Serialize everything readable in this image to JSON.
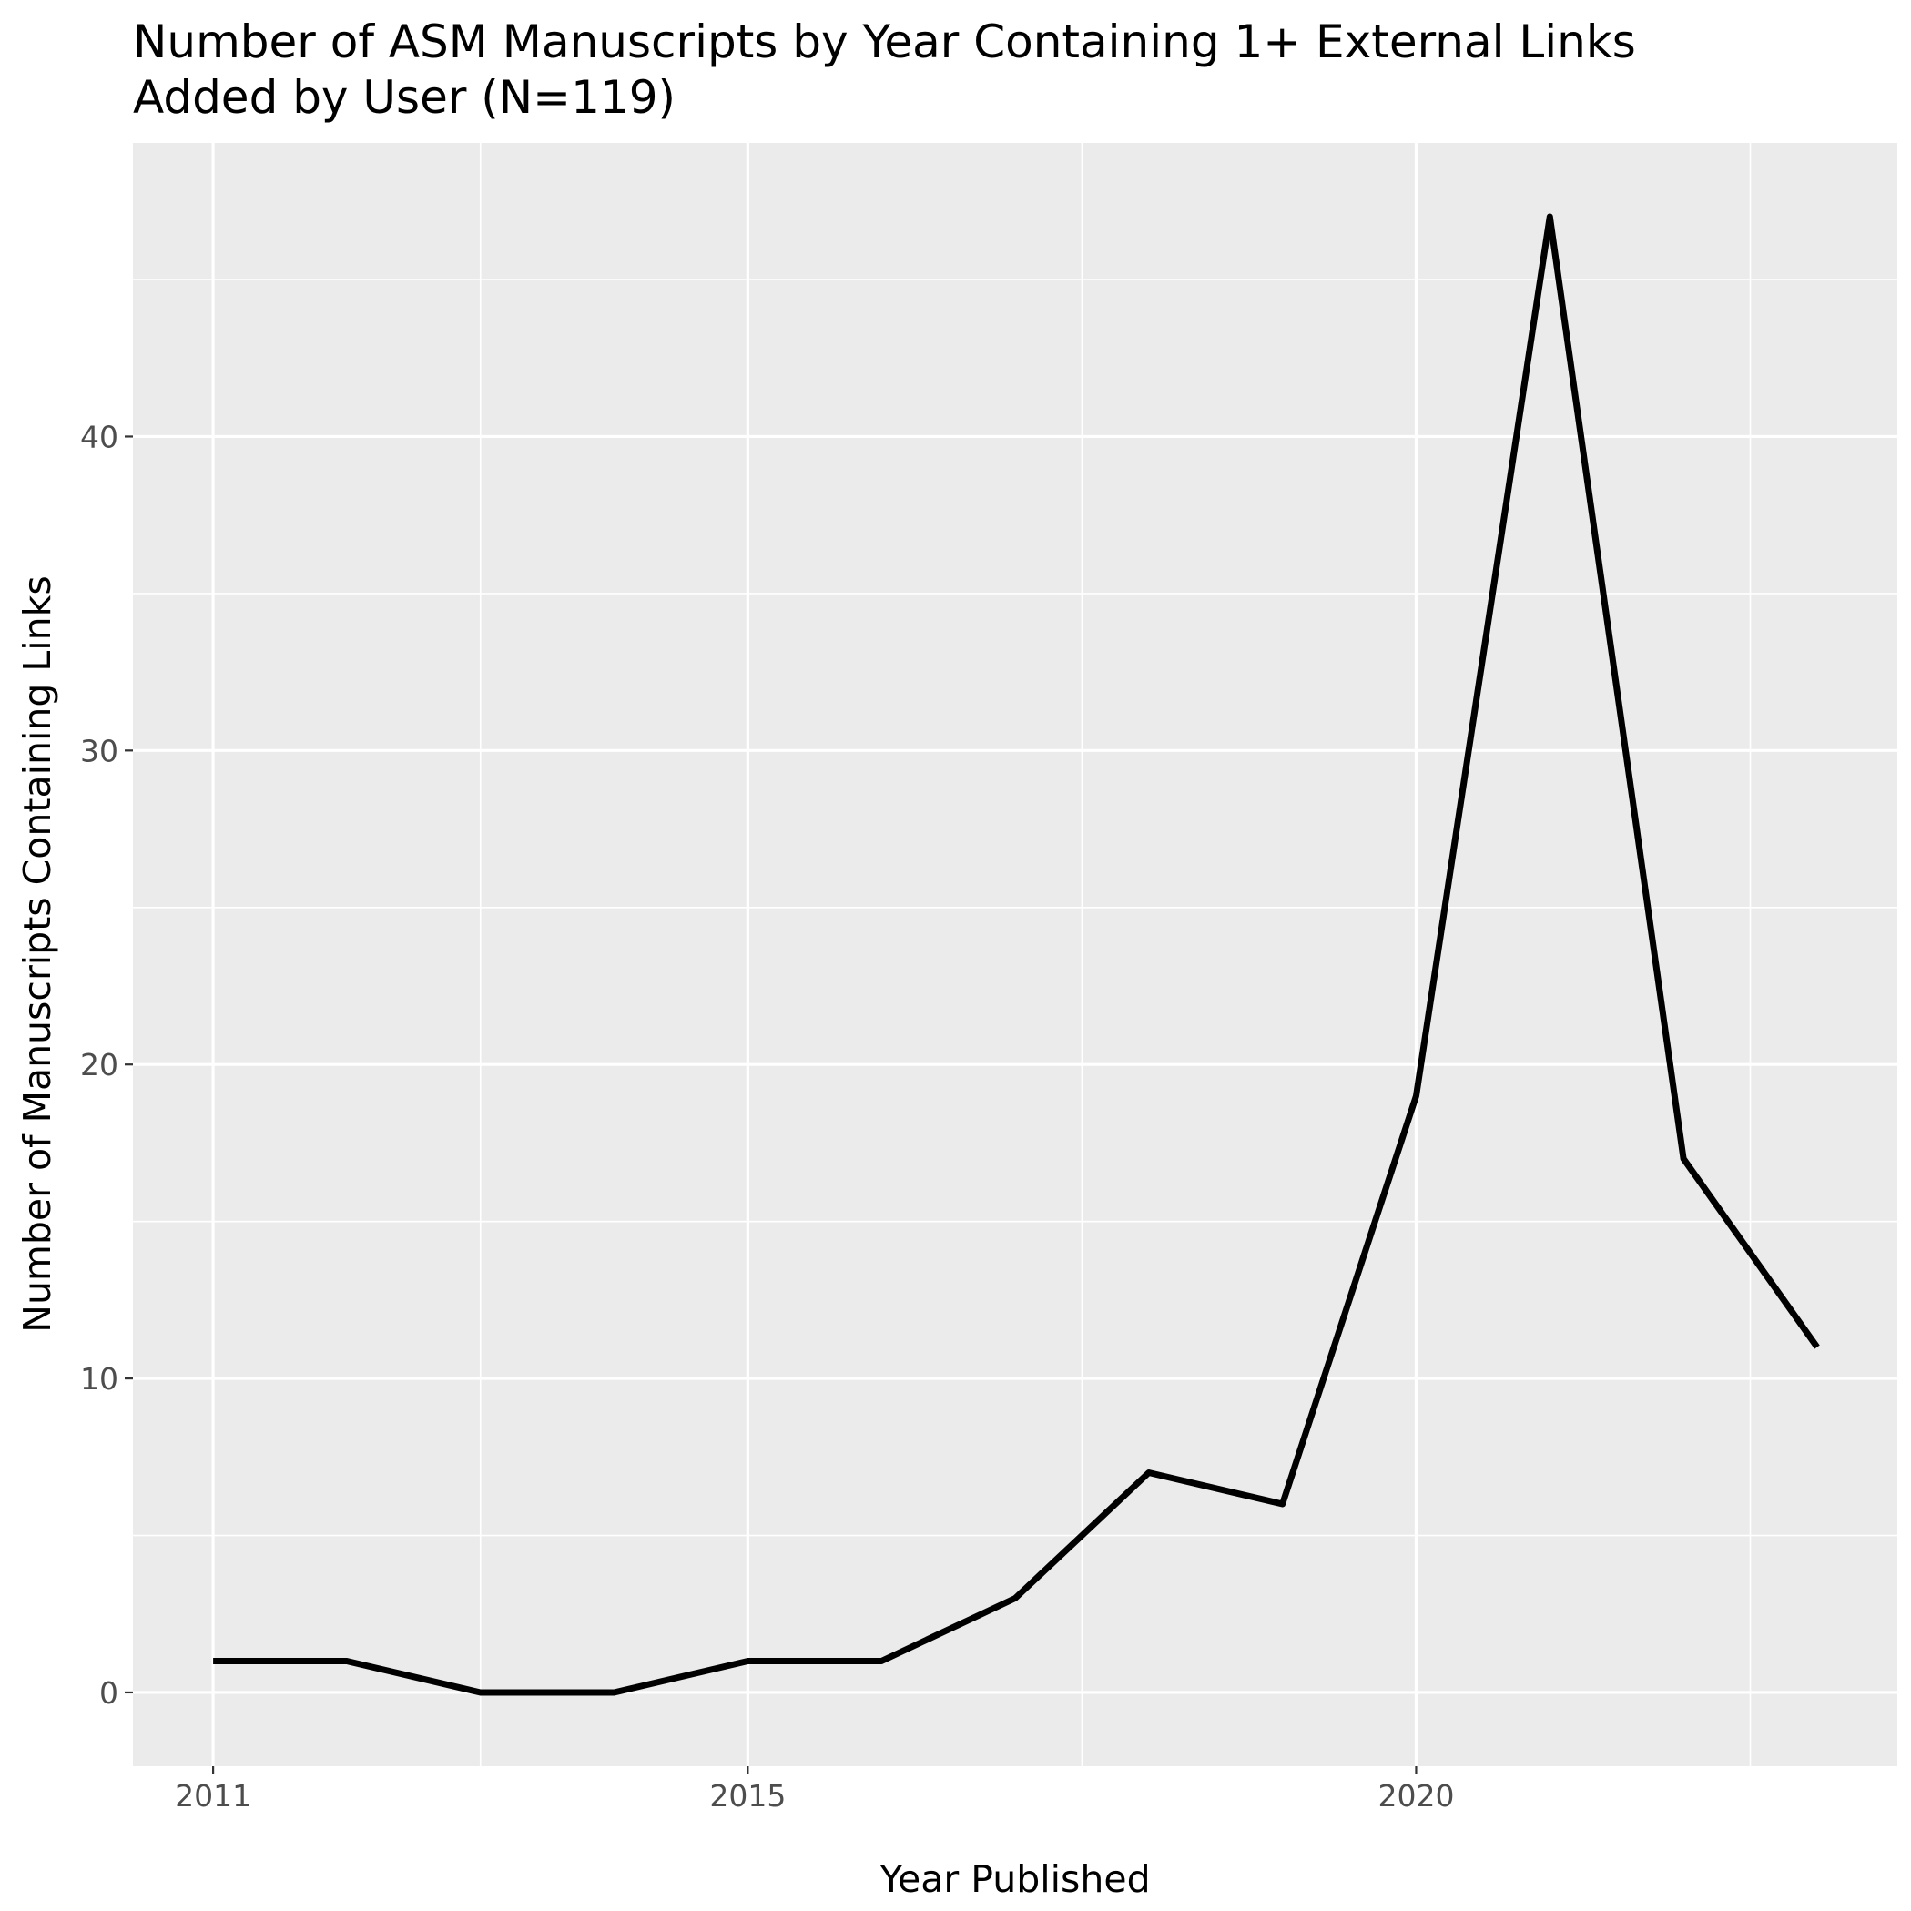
{
  "chart_data": {
    "type": "line",
    "title": "Number of ASM Manuscripts by Year Containing 1+ External Links",
    "subtitle": "Added by User (N=119)",
    "xlabel": "Year Published",
    "ylabel": "Number of Manuscripts Containing Links",
    "x": [
      2011,
      2012,
      2013,
      2014,
      2015,
      2016,
      2017,
      2018,
      2019,
      2020,
      2021,
      2022,
      2023
    ],
    "series": [
      {
        "values": [
          1,
          1,
          0,
          0,
          1,
          1,
          3,
          7,
          6,
          19,
          47,
          17,
          11
        ]
      }
    ],
    "xlim": [
      2010.4,
      2023.6
    ],
    "ylim": [
      -2.35,
      49.35
    ],
    "x_ticks": [
      2011,
      2015,
      2020
    ],
    "x_tick_labels": [
      "2011",
      "2015",
      "2020"
    ],
    "y_ticks": [
      0,
      10,
      20,
      30,
      40
    ],
    "y_tick_labels": [
      "0",
      "10",
      "20",
      "30",
      "40"
    ],
    "x_minor_ticks": [
      2013,
      2017.5,
      2022.5
    ],
    "y_minor_ticks": [
      5,
      15,
      25,
      35,
      45
    ],
    "grid": true,
    "legend": "none",
    "colors": {
      "panel_background": "#ebebeb",
      "grid_line": "#ffffff",
      "series_line": "#000000",
      "tick_label": "#4d4d4d",
      "tick_mark": "#333333"
    }
  }
}
